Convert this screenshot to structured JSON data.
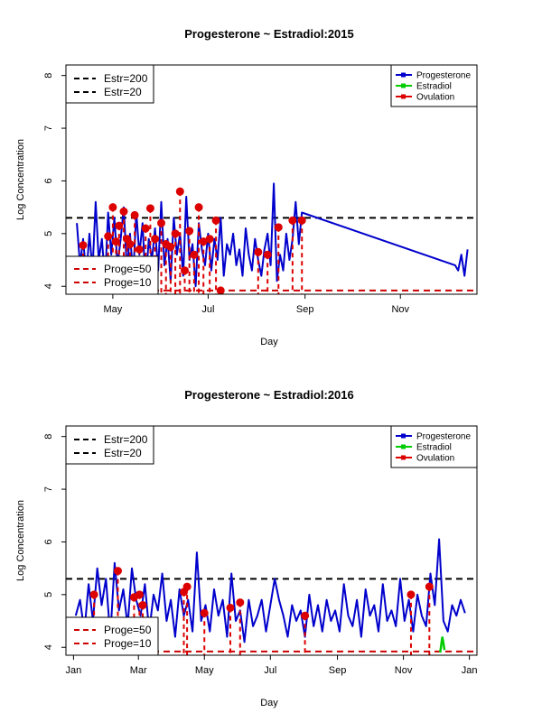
{
  "chart_data": [
    {
      "type": "line",
      "title": "Progesterone ~ Estradiol:2015",
      "xlabel": "Day",
      "ylabel": "Log Concentration",
      "ylim": [
        3.85,
        8.2
      ],
      "yticks": [
        4,
        5,
        6,
        7,
        8
      ],
      "xlim": [
        "2015-04-01",
        "2015-12-20"
      ],
      "xticks": [
        {
          "date": "2015-05-01",
          "label": "May"
        },
        {
          "date": "2015-07-01",
          "label": "Jul"
        },
        {
          "date": "2015-09-01",
          "label": "Sep"
        },
        {
          "date": "2015-11-01",
          "label": "Nov"
        }
      ],
      "hlines": [
        {
          "name": "Estr=200",
          "y": 5.3,
          "color": "#000000",
          "style": "dashed"
        },
        {
          "name": "Estr=20",
          "y": 3.0,
          "color": "#000000",
          "style": "dashed"
        },
        {
          "name": "Proge=50",
          "y": 3.92,
          "color": "#cc0000",
          "style": "dashed"
        },
        {
          "name": "Proge=10",
          "y": 2.3,
          "color": "#cc0000",
          "style": "dashed"
        }
      ],
      "legend_left_top": [
        "Estr=200",
        "Estr=20"
      ],
      "legend_left_bottom": [
        "Proge=50",
        "Proge=10"
      ],
      "legend_right": [
        {
          "name": "Progesterone",
          "color": "#0000cc"
        },
        {
          "name": "Estradiol",
          "color": "#00cc00"
        },
        {
          "name": "Ovulation",
          "color": "#dd0000"
        }
      ],
      "series": [
        {
          "name": "Progesterone",
          "color": "#0000cc",
          "x": [
            "2015-04-08",
            "2015-04-10",
            "2015-04-12",
            "2015-04-14",
            "2015-04-16",
            "2015-04-18",
            "2015-04-20",
            "2015-04-22",
            "2015-04-24",
            "2015-04-26",
            "2015-04-28",
            "2015-04-30",
            "2015-05-02",
            "2015-05-04",
            "2015-05-06",
            "2015-05-08",
            "2015-05-10",
            "2015-05-12",
            "2015-05-14",
            "2015-05-16",
            "2015-05-18",
            "2015-05-20",
            "2015-05-22",
            "2015-05-24",
            "2015-05-26",
            "2015-05-28",
            "2015-05-30",
            "2015-06-01",
            "2015-06-03",
            "2015-06-05",
            "2015-06-07",
            "2015-06-09",
            "2015-06-11",
            "2015-06-13",
            "2015-06-15",
            "2015-06-17",
            "2015-06-19",
            "2015-06-21",
            "2015-06-23",
            "2015-06-25",
            "2015-06-27",
            "2015-06-29",
            "2015-07-01",
            "2015-07-03",
            "2015-07-05",
            "2015-07-07",
            "2015-07-09",
            "2015-07-11",
            "2015-07-13",
            "2015-07-15",
            "2015-07-17",
            "2015-07-19",
            "2015-07-21",
            "2015-07-23",
            "2015-07-25",
            "2015-07-27",
            "2015-07-29",
            "2015-07-31",
            "2015-08-02",
            "2015-08-04",
            "2015-08-06",
            "2015-08-08",
            "2015-08-10",
            "2015-08-12",
            "2015-08-14",
            "2015-08-16",
            "2015-08-18",
            "2015-08-20",
            "2015-08-22",
            "2015-08-24",
            "2015-08-26",
            "2015-08-28",
            "2015-08-30",
            "2015-12-06",
            "2015-12-08",
            "2015-12-10",
            "2015-12-12",
            "2015-12-14"
          ],
          "y": [
            5.2,
            4.4,
            4.9,
            4.2,
            5.0,
            4.3,
            5.6,
            4.5,
            4.9,
            4.1,
            5.4,
            4.6,
            5.3,
            4.4,
            4.9,
            5.5,
            4.3,
            5.0,
            4.2,
            5.4,
            4.6,
            5.2,
            4.0,
            4.9,
            4.5,
            5.1,
            4.3,
            5.6,
            4.4,
            4.9,
            4.1,
            5.3,
            4.6,
            5.0,
            4.2,
            5.7,
            4.5,
            4.8,
            4.0,
            5.2,
            4.7,
            4.4,
            5.0,
            4.3,
            4.9,
            4.5,
            5.3,
            4.2,
            4.8,
            4.6,
            5.0,
            4.4,
            4.7,
            4.2,
            5.1,
            4.6,
            4.3,
            4.9,
            4.5,
            4.2,
            4.7,
            5.0,
            4.4,
            5.95,
            4.1,
            4.6,
            4.3,
            5.0,
            4.5,
            4.9,
            5.6,
            4.8,
            5.4,
            4.4,
            4.3,
            4.6,
            4.2,
            4.7
          ]
        },
        {
          "name": "Ovulation",
          "color": "#dd0000",
          "x": [
            "2015-04-12",
            "2015-04-28",
            "2015-05-01",
            "2015-05-03",
            "2015-05-05",
            "2015-05-08",
            "2015-05-10",
            "2015-05-12",
            "2015-05-15",
            "2015-05-18",
            "2015-05-22",
            "2015-05-25",
            "2015-05-28",
            "2015-06-01",
            "2015-06-04",
            "2015-06-07",
            "2015-06-10",
            "2015-06-13",
            "2015-06-16",
            "2015-06-19",
            "2015-06-22",
            "2015-06-25",
            "2015-06-28",
            "2015-07-02",
            "2015-07-06",
            "2015-07-09",
            "2015-08-02",
            "2015-08-08",
            "2015-08-15",
            "2015-08-24",
            "2015-08-30"
          ],
          "y": [
            4.78,
            4.95,
            5.5,
            4.85,
            5.15,
            5.42,
            4.9,
            4.8,
            5.35,
            4.7,
            5.1,
            5.48,
            4.9,
            5.2,
            4.8,
            4.75,
            5.0,
            5.8,
            4.3,
            5.05,
            4.6,
            5.5,
            4.85,
            4.9,
            5.25,
            3.92,
            4.65,
            4.6,
            5.12,
            5.25,
            5.25
          ]
        }
      ]
    },
    {
      "type": "line",
      "title": "Progesterone ~ Estradiol:2016",
      "xlabel": "Day",
      "ylabel": "Log Concentration",
      "ylim": [
        3.85,
        8.2
      ],
      "yticks": [
        4,
        5,
        6,
        7,
        8
      ],
      "xlim": [
        "2015-12-25",
        "2017-01-08"
      ],
      "xticks": [
        {
          "date": "2016-01-01",
          "label": "Jan"
        },
        {
          "date": "2016-03-01",
          "label": "Mar"
        },
        {
          "date": "2016-05-01",
          "label": "May"
        },
        {
          "date": "2016-07-01",
          "label": "Jul"
        },
        {
          "date": "2016-09-01",
          "label": "Sep"
        },
        {
          "date": "2016-11-01",
          "label": "Nov"
        },
        {
          "date": "2017-01-01",
          "label": "Jan"
        }
      ],
      "hlines": [
        {
          "name": "Estr=200",
          "y": 5.3,
          "color": "#000000",
          "style": "dashed"
        },
        {
          "name": "Estr=20",
          "y": 3.0,
          "color": "#000000",
          "style": "dashed"
        },
        {
          "name": "Proge=50",
          "y": 3.92,
          "color": "#cc0000",
          "style": "dashed"
        },
        {
          "name": "Proge=10",
          "y": 2.3,
          "color": "#cc0000",
          "style": "dashed"
        }
      ],
      "legend_left_top": [
        "Estr=200",
        "Estr=20"
      ],
      "legend_left_bottom": [
        "Proge=50",
        "Proge=10"
      ],
      "legend_right": [
        {
          "name": "Progesterone",
          "color": "#0000cc"
        },
        {
          "name": "Estradiol",
          "color": "#00cc00"
        },
        {
          "name": "Ovulation",
          "color": "#dd0000"
        }
      ],
      "series": [
        {
          "name": "Progesterone",
          "color": "#0000cc",
          "x": [
            "2016-01-03",
            "2016-01-07",
            "2016-01-11",
            "2016-01-15",
            "2016-01-19",
            "2016-01-23",
            "2016-01-27",
            "2016-01-31",
            "2016-02-04",
            "2016-02-08",
            "2016-02-12",
            "2016-02-16",
            "2016-02-20",
            "2016-02-24",
            "2016-02-28",
            "2016-03-03",
            "2016-03-07",
            "2016-03-11",
            "2016-03-15",
            "2016-03-19",
            "2016-03-23",
            "2016-03-27",
            "2016-03-31",
            "2016-04-04",
            "2016-04-08",
            "2016-04-12",
            "2016-04-16",
            "2016-04-20",
            "2016-04-24",
            "2016-04-28",
            "2016-05-02",
            "2016-05-06",
            "2016-05-10",
            "2016-05-14",
            "2016-05-18",
            "2016-05-22",
            "2016-05-26",
            "2016-05-30",
            "2016-06-03",
            "2016-06-07",
            "2016-06-11",
            "2016-06-15",
            "2016-06-19",
            "2016-06-23",
            "2016-06-27",
            "2016-07-01",
            "2016-07-05",
            "2016-07-09",
            "2016-07-13",
            "2016-07-17",
            "2016-07-21",
            "2016-07-25",
            "2016-07-29",
            "2016-08-02",
            "2016-08-06",
            "2016-08-10",
            "2016-08-14",
            "2016-08-18",
            "2016-08-22",
            "2016-08-26",
            "2016-08-30",
            "2016-09-03",
            "2016-09-07",
            "2016-09-11",
            "2016-09-15",
            "2016-09-19",
            "2016-09-23",
            "2016-09-27",
            "2016-10-01",
            "2016-10-05",
            "2016-10-09",
            "2016-10-13",
            "2016-10-17",
            "2016-10-21",
            "2016-10-25",
            "2016-10-29",
            "2016-11-02",
            "2016-11-06",
            "2016-11-10",
            "2016-11-14",
            "2016-11-18",
            "2016-11-22",
            "2016-11-26",
            "2016-11-30",
            "2016-12-04",
            "2016-12-08",
            "2016-12-12",
            "2016-12-16",
            "2016-12-20",
            "2016-12-24",
            "2016-12-28"
          ],
          "y": [
            4.6,
            4.9,
            4.3,
            5.2,
            4.5,
            5.5,
            4.8,
            5.3,
            4.2,
            5.6,
            4.7,
            5.1,
            4.4,
            5.5,
            4.9,
            4.6,
            5.2,
            4.3,
            5.0,
            4.7,
            5.4,
            4.5,
            4.9,
            4.2,
            5.1,
            4.6,
            4.9,
            4.3,
            5.8,
            4.5,
            4.8,
            4.3,
            5.1,
            4.6,
            4.9,
            4.2,
            5.4,
            4.5,
            4.7,
            4.1,
            4.9,
            4.4,
            4.6,
            4.9,
            4.3,
            4.8,
            5.3,
            4.9,
            4.6,
            4.2,
            4.8,
            4.5,
            4.7,
            4.2,
            5.0,
            4.4,
            4.8,
            4.3,
            4.9,
            4.5,
            4.7,
            4.3,
            5.2,
            4.6,
            4.4,
            4.9,
            4.2,
            5.1,
            4.6,
            4.8,
            4.3,
            5.2,
            4.5,
            4.7,
            4.4,
            5.3,
            4.5,
            4.9,
            4.3,
            5.0,
            4.6,
            4.4,
            5.4,
            4.8,
            6.05,
            4.5,
            4.3,
            4.8,
            4.6,
            4.9,
            4.65
          ]
        },
        {
          "name": "Estradiol",
          "color": "#00cc00",
          "x": [
            "2016-12-05",
            "2016-12-07",
            "2016-12-09"
          ],
          "y": [
            3.9,
            4.2,
            3.95
          ]
        },
        {
          "name": "Ovulation",
          "color": "#dd0000",
          "x": [
            "2016-01-20",
            "2016-02-11",
            "2016-02-26",
            "2016-03-02",
            "2016-03-05",
            "2016-04-12",
            "2016-04-15",
            "2016-05-01",
            "2016-05-25",
            "2016-06-03",
            "2016-08-02",
            "2016-11-08",
            "2016-11-25"
          ],
          "y": [
            5.0,
            5.45,
            4.95,
            5.0,
            4.8,
            5.05,
            5.15,
            4.65,
            4.75,
            4.85,
            4.6,
            5.0,
            5.15
          ]
        }
      ]
    }
  ]
}
